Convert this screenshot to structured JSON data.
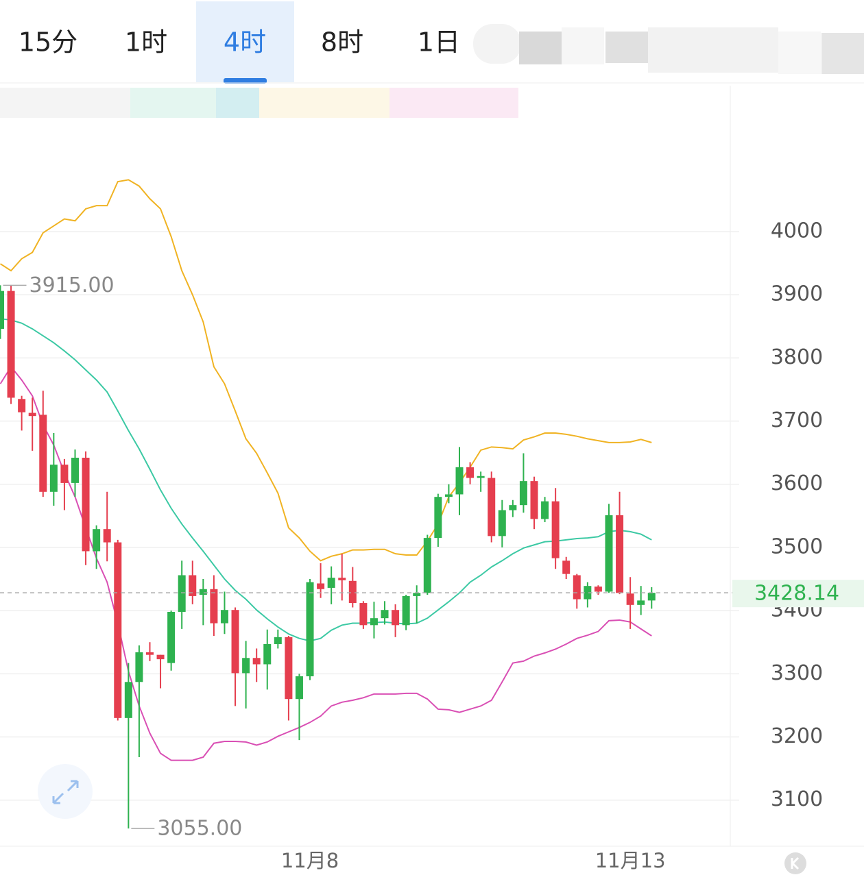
{
  "tabs": [
    "15分",
    "1时",
    "4时",
    "8时",
    "1日"
  ],
  "chart_data": {
    "type": "candlestick",
    "categories": [
      null,
      null,
      null,
      null,
      null,
      null,
      null,
      null,
      null,
      null,
      null,
      null,
      null,
      null,
      null,
      null,
      null,
      null,
      null,
      null,
      null,
      null,
      null,
      null,
      null,
      null,
      null,
      null,
      null,
      "11月8",
      null,
      null,
      null,
      null,
      null,
      null,
      null,
      null,
      null,
      null,
      null,
      null,
      null,
      null,
      null,
      null,
      null,
      null,
      null,
      null,
      null,
      null,
      null,
      null,
      null,
      null,
      null,
      null,
      null,
      "11月13",
      null,
      null
    ],
    "open": [
      3846,
      3906,
      3735,
      3713,
      3710,
      3588,
      3631,
      3602,
      3642,
      3494,
      3529,
      3508,
      3230,
      3287,
      3334,
      3330,
      3317,
      3398,
      3456,
      3425,
      3434,
      3380,
      3401,
      3301,
      3325,
      3315,
      3347,
      3358,
      3260,
      3296,
      3443,
      3436,
      3452,
      3447,
      3412,
      3377,
      3388,
      3401,
      3377,
      3423,
      3428,
      3515,
      3580,
      3584,
      3627,
      3610,
      3610,
      3518,
      3559,
      3567,
      3605,
      3545,
      3573,
      3479,
      3456,
      3418,
      3438,
      3430,
      3551,
      3427,
      3409,
      3416
    ],
    "high": [
      3915,
      3915,
      3740,
      3737,
      3748,
      3681,
      3640,
      3655,
      3652,
      3535,
      3588,
      3512,
      3317,
      3345,
      3350,
      3330,
      3400,
      3479,
      3479,
      3450,
      3456,
      3430,
      3405,
      3352,
      3340,
      3370,
      3370,
      3360,
      3300,
      3450,
      3475,
      3470,
      3490,
      3469,
      3415,
      3414,
      3415,
      3410,
      3425,
      3440,
      3520,
      3585,
      3600,
      3659,
      3635,
      3620,
      3620,
      3575,
      3575,
      3649,
      3612,
      3580,
      3594,
      3485,
      3458,
      3445,
      3440,
      3569,
      3588,
      3453,
      3439,
      3437
    ],
    "low": [
      3830,
      3727,
      3685,
      3653,
      3580,
      3566,
      3559,
      3580,
      3472,
      3466,
      3478,
      3226,
      3055,
      3168,
      3320,
      3277,
      3305,
      3371,
      3410,
      3377,
      3360,
      3363,
      3249,
      3245,
      3287,
      3275,
      3340,
      3226,
      3195,
      3290,
      3420,
      3410,
      3416,
      3405,
      3371,
      3356,
      3378,
      3358,
      3369,
      3380,
      3425,
      3501,
      3570,
      3551,
      3600,
      3588,
      3508,
      3500,
      3548,
      3555,
      3529,
      3540,
      3466,
      3450,
      3403,
      3405,
      3425,
      3428,
      3426,
      3371,
      3393,
      3403
    ],
    "close": [
      3906,
      3737,
      3714,
      3708,
      3588,
      3631,
      3602,
      3642,
      3494,
      3529,
      3508,
      3230,
      3287,
      3334,
      3330,
      3323,
      3398,
      3456,
      3423,
      3434,
      3380,
      3401,
      3301,
      3325,
      3315,
      3347,
      3358,
      3260,
      3296,
      3445,
      3434,
      3452,
      3448,
      3412,
      3377,
      3388,
      3401,
      3377,
      3423,
      3428,
      3515,
      3580,
      3584,
      3627,
      3610,
      3613,
      3518,
      3559,
      3567,
      3605,
      3545,
      3573,
      3483,
      3458,
      3418,
      3439,
      3430,
      3551,
      3428,
      3409,
      3416,
      3428.14
    ],
    "up_color": "#2eb24f",
    "down_color": "#e53e4e",
    "bands": [
      {
        "color": "#f0b323",
        "values": [
          3949,
          3938,
          3957,
          3967,
          3998,
          4009,
          4020,
          4017,
          4036,
          4041,
          4041,
          4079,
          4082,
          4072,
          4052,
          4036,
          3992,
          3938,
          3900,
          3857,
          3786,
          3759,
          3716,
          3672,
          3649,
          3618,
          3586,
          3531,
          3515,
          3494,
          3479,
          3486,
          3490,
          3496,
          3496,
          3497,
          3497,
          3490,
          3488,
          3488,
          3510,
          3537,
          3580,
          3602,
          3627,
          3654,
          3659,
          3658,
          3656,
          3670,
          3675,
          3681,
          3681,
          3679,
          3676,
          3672,
          3669,
          3666,
          3666,
          3667,
          3671,
          3666
        ]
      },
      {
        "color": "#3cc9a4",
        "values": [
          3862,
          3860,
          3855,
          3846,
          3835,
          3824,
          3811,
          3797,
          3781,
          3765,
          3746,
          3716,
          3685,
          3656,
          3624,
          3591,
          3562,
          3537,
          3515,
          3494,
          3472,
          3450,
          3432,
          3418,
          3401,
          3387,
          3374,
          3363,
          3356,
          3352,
          3356,
          3369,
          3377,
          3380,
          3380,
          3381,
          3382,
          3380,
          3379,
          3380,
          3388,
          3401,
          3414,
          3428,
          3445,
          3456,
          3469,
          3479,
          3490,
          3499,
          3504,
          3509,
          3510,
          3512,
          3514,
          3515,
          3517,
          3525,
          3527,
          3525,
          3521,
          3512
        ]
      },
      {
        "color": "#d94fb4",
        "values": [
          3759,
          3786,
          3765,
          3740,
          3694,
          3662,
          3618,
          3580,
          3531,
          3483,
          3445,
          3380,
          3304,
          3249,
          3206,
          3174,
          3163,
          3163,
          3163,
          3168,
          3190,
          3193,
          3193,
          3192,
          3187,
          3192,
          3201,
          3208,
          3215,
          3223,
          3233,
          3249,
          3255,
          3258,
          3262,
          3268,
          3268,
          3268,
          3269,
          3269,
          3260,
          3244,
          3243,
          3239,
          3244,
          3249,
          3258,
          3287,
          3317,
          3320,
          3328,
          3333,
          3339,
          3347,
          3356,
          3361,
          3367,
          3384,
          3385,
          3382,
          3371,
          3360
        ]
      }
    ],
    "max_label": "3915.00",
    "min_label": "3055.00",
    "last_label": "3428.14",
    "ylim": [
      3027,
      4231
    ],
    "yticks": [
      3100,
      3200,
      3300,
      3400,
      3500,
      3600,
      3700,
      3800,
      3900,
      4000
    ],
    "grid": true
  }
}
